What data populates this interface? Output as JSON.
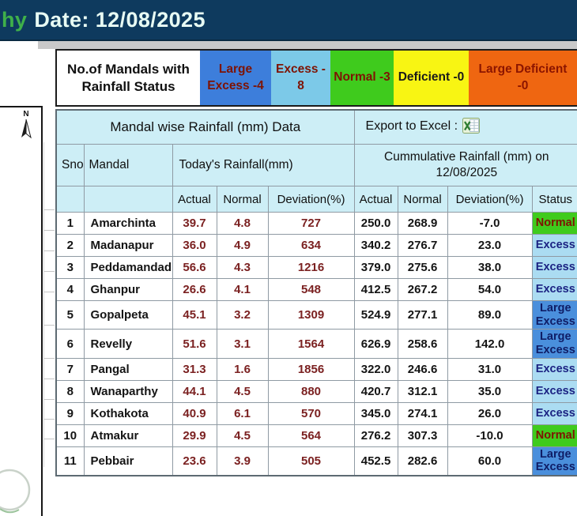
{
  "titlebar": {
    "prefix": "hy",
    "date": "Date: 12/08/2025"
  },
  "legend": {
    "label": "No.of Mandals with Rainfall Status",
    "items": [
      {
        "label": "Large Excess -4",
        "bg": "#3d7edb",
        "color": "#7e1303"
      },
      {
        "label": "Excess - 8",
        "bg": "#7cc9e8",
        "color": "#7e1303"
      },
      {
        "label": "Normal -3",
        "bg": "#3fcb1d",
        "color": "#7e1303"
      },
      {
        "label": "Deficient -0",
        "bg": "#f8f513",
        "color": "#1a1a1a"
      },
      {
        "label": "Large Deficient -0",
        "bg": "#ef6611",
        "color": "#8c1500"
      }
    ]
  },
  "map": {
    "compass": "N"
  },
  "table": {
    "title": "Mandal wise Rainfall (mm) Data",
    "export_label": "Export to Excel :",
    "excel_icon": "excel-icon",
    "headers": {
      "sno": "Sno",
      "mandal": "Mandal",
      "today": "Today's Rainfall(mm)",
      "cumulative": "Cummulative Rainfall (mm) on 12/08/2025"
    },
    "subheaders": [
      "Actual",
      "Normal",
      "Deviation(%)",
      "Actual",
      "Normal",
      "Deviation(%)",
      "Status"
    ],
    "rows": [
      {
        "sno": "1",
        "mandal": "Amarchinta",
        "t_actual": "39.7",
        "t_normal": "4.8",
        "t_dev": "727",
        "c_actual": "250.0",
        "c_normal": "268.9",
        "c_dev": "-7.0",
        "status": "Normal"
      },
      {
        "sno": "2",
        "mandal": "Madanapur",
        "t_actual": "36.0",
        "t_normal": "4.9",
        "t_dev": "634",
        "c_actual": "340.2",
        "c_normal": "276.7",
        "c_dev": "23.0",
        "status": "Excess"
      },
      {
        "sno": "3",
        "mandal": "Peddamandadi",
        "t_actual": "56.6",
        "t_normal": "4.3",
        "t_dev": "1216",
        "c_actual": "379.0",
        "c_normal": "275.6",
        "c_dev": "38.0",
        "status": "Excess"
      },
      {
        "sno": "4",
        "mandal": "Ghanpur",
        "t_actual": "26.6",
        "t_normal": "4.1",
        "t_dev": "548",
        "c_actual": "412.5",
        "c_normal": "267.2",
        "c_dev": "54.0",
        "status": "Excess"
      },
      {
        "sno": "5",
        "mandal": "Gopalpeta",
        "t_actual": "45.1",
        "t_normal": "3.2",
        "t_dev": "1309",
        "c_actual": "524.9",
        "c_normal": "277.1",
        "c_dev": "89.0",
        "status": "Large Excess"
      },
      {
        "sno": "6",
        "mandal": "Revelly",
        "t_actual": "51.6",
        "t_normal": "3.1",
        "t_dev": "1564",
        "c_actual": "626.9",
        "c_normal": "258.6",
        "c_dev": "142.0",
        "status": "Large Excess"
      },
      {
        "sno": "7",
        "mandal": "Pangal",
        "t_actual": "31.3",
        "t_normal": "1.6",
        "t_dev": "1856",
        "c_actual": "322.0",
        "c_normal": "246.6",
        "c_dev": "31.0",
        "status": "Excess"
      },
      {
        "sno": "8",
        "mandal": "Wanaparthy",
        "t_actual": "44.1",
        "t_normal": "4.5",
        "t_dev": "880",
        "c_actual": "420.7",
        "c_normal": "312.1",
        "c_dev": "35.0",
        "status": "Excess"
      },
      {
        "sno": "9",
        "mandal": "Kothakota",
        "t_actual": "40.9",
        "t_normal": "6.1",
        "t_dev": "570",
        "c_actual": "345.0",
        "c_normal": "274.1",
        "c_dev": "26.0",
        "status": "Excess"
      },
      {
        "sno": "10",
        "mandal": "Atmakur",
        "t_actual": "29.9",
        "t_normal": "4.5",
        "t_dev": "564",
        "c_actual": "276.2",
        "c_normal": "307.3",
        "c_dev": "-10.0",
        "status": "Normal"
      },
      {
        "sno": "11",
        "mandal": "Pebbair",
        "t_actual": "23.6",
        "t_normal": "3.9",
        "t_dev": "505",
        "c_actual": "452.5",
        "c_normal": "282.6",
        "c_dev": "60.0",
        "status": "Large Excess"
      }
    ]
  },
  "status_styles": {
    "Normal": {
      "bg": "#3fcb1d",
      "color": "#7e1303"
    },
    "Excess": {
      "bg": "#abdcf2",
      "color": "#1b2383"
    },
    "Large Excess": {
      "bg": "#4a8fdc",
      "color": "#0f1d66"
    }
  }
}
